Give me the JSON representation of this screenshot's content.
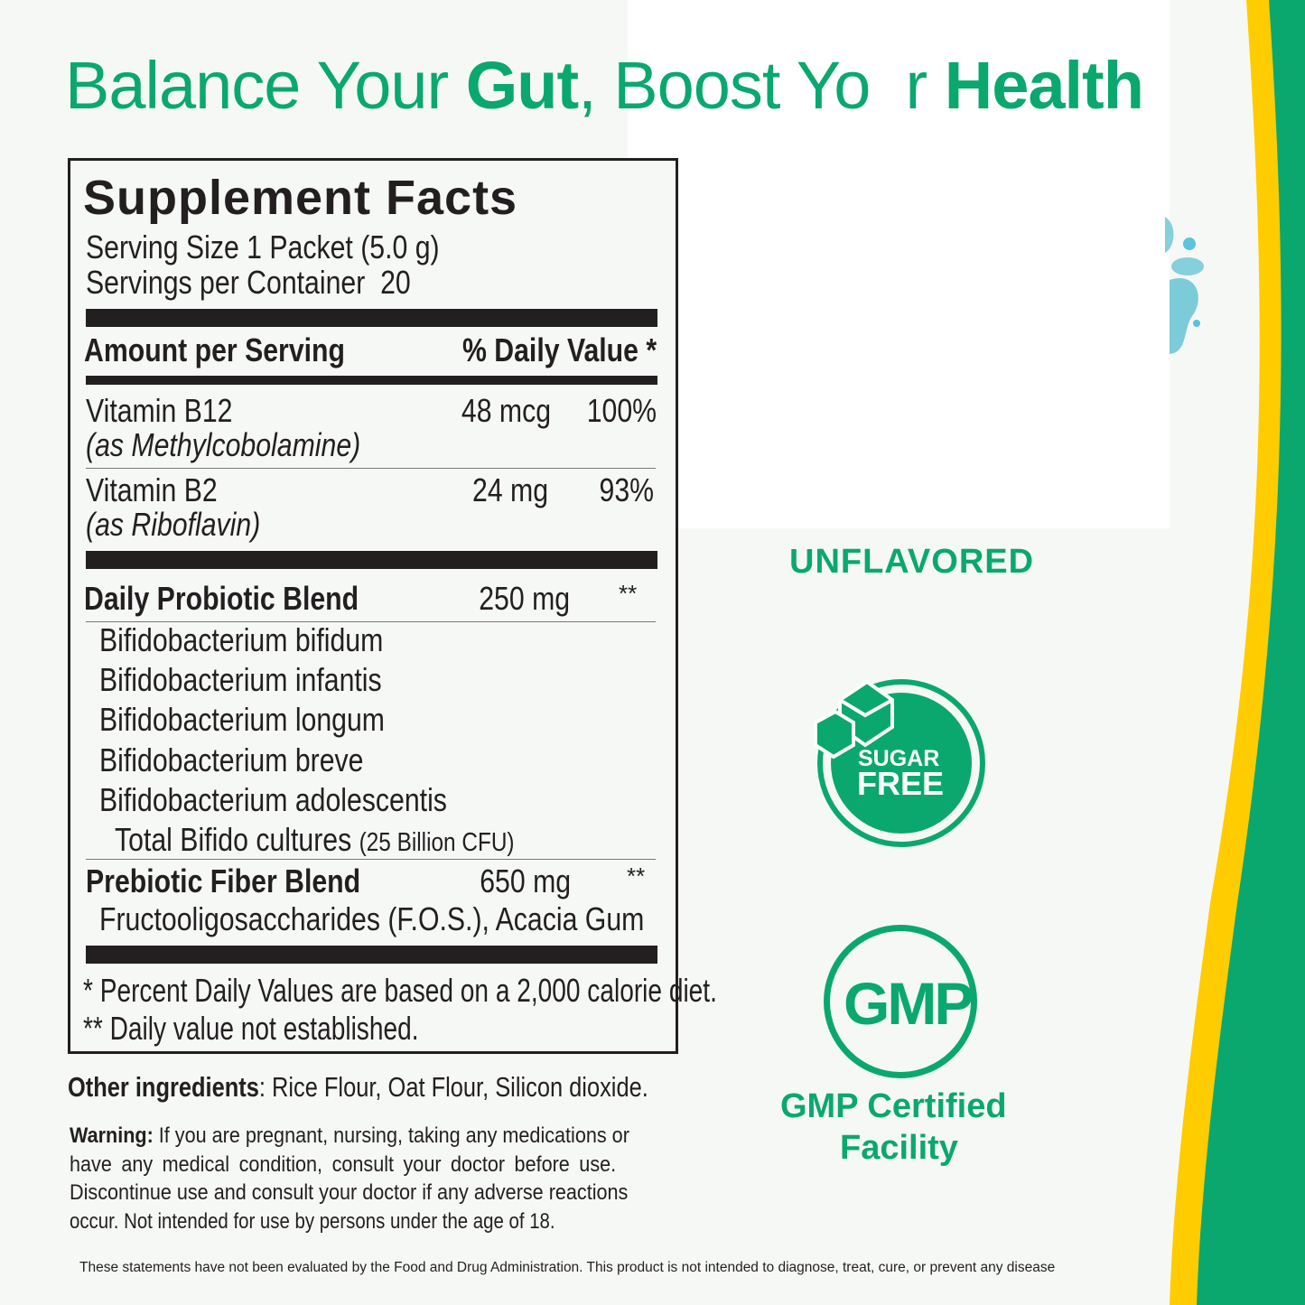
{
  "headline": {
    "part1": "Balance Your ",
    "bold1": "Gut",
    "part2": ", Boost Yo  r ",
    "bold2": "Health"
  },
  "facts": {
    "title": "Supplement Facts",
    "serving_size": "Serving Size 1 Packet (5.0 g)",
    "servings_per_container": "Servings per Container  20",
    "header_amount": "Amount per Serving",
    "header_dv": "% Daily Value *",
    "vitamins": [
      {
        "name": "Vitamin B12",
        "source": "(as Methylcobolamine)",
        "amount": "48 mcg",
        "dv": "100%"
      },
      {
        "name": "Vitamin B2",
        "source": "(as Riboflavin)",
        "amount": "24 mg",
        "dv": "93%"
      }
    ],
    "probiotic": {
      "name": "Daily Probiotic Blend",
      "amount": "250 mg",
      "dv": "**",
      "strains": [
        "Bifidobacterium bifidum",
        "Bifidobacterium infantis",
        "Bifidobacterium longum",
        "Bifidobacterium breve",
        "Bifidobacterium adolescentis"
      ],
      "total": "Total Bifido cultures",
      "total_cfu": "(25 Billion CFU)"
    },
    "prebiotic": {
      "name": "Prebiotic Fiber Blend",
      "amount": "650 mg",
      "dv": "**",
      "ingredients": "Fructooligosaccharides (F.O.S.), Acacia Gum"
    },
    "footnote1": "* Percent Daily Values are based on a 2,000 calorie diet.",
    "footnote2": "** Daily value not established."
  },
  "other_ingredients": {
    "label": "Other ingredients",
    "text": ": Rice Flour, Oat Flour, Silicon dioxide."
  },
  "warning": {
    "label": "Warning:",
    "lines": [
      " If you are pregnant, nursing, taking any medications or",
      "have any medical condition, consult your doctor before use.",
      "Discontinue use and consult your doctor if any adverse reactions",
      "occur. Not intended for use by persons under the age of 18."
    ]
  },
  "disclaimer": "These statements have not been evaluated by the Food and Drug Administration. This product is not intended to diagnose, treat, cure, or prevent any disease",
  "badges": {
    "flavor": "UNFLAVORED",
    "sugar_top": "SUGAR",
    "sugar_bottom": "FREE",
    "gmp": "GMP",
    "gmp_caption1": "GMP Certified",
    "gmp_caption2": "Facility"
  },
  "colors": {
    "brand_green": "#0aa86e",
    "accent_yellow": "#ffcc00",
    "droplet_blue": "#5bc3de"
  },
  "icons": [
    "sugar-cube-icon",
    "droplet-graphic"
  ]
}
